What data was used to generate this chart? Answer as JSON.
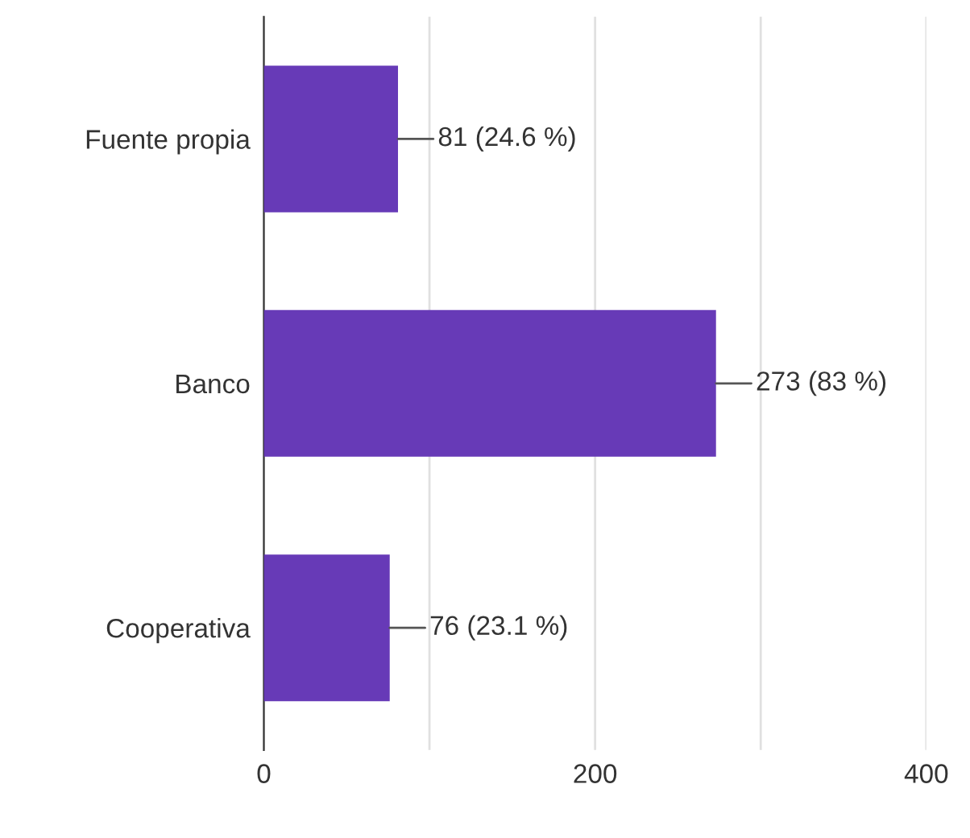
{
  "chart_data": {
    "type": "bar",
    "orientation": "horizontal",
    "categories": [
      "Fuente propia",
      "Banco",
      "Cooperativa"
    ],
    "values": [
      81,
      273,
      76
    ],
    "value_labels": [
      "81 (24.6 %)",
      "273 (83 %)",
      "76 (23.1 %)"
    ],
    "color": "#673ab7",
    "xlim": [
      0,
      400
    ],
    "xticks": [
      0,
      {
        "value": 100,
        "label": null
      },
      200,
      {
        "value": 300,
        "label": null
      },
      400
    ],
    "grid": "x"
  }
}
